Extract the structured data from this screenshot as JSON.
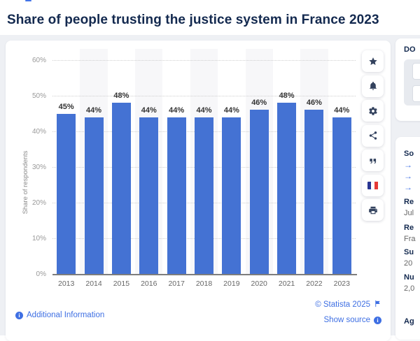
{
  "page": {
    "title": "Share of people trusting the justice system in France 2023"
  },
  "chart_data": {
    "type": "bar",
    "title": "Share of people trusting the justice system in France 2023",
    "categories": [
      "2013",
      "2014",
      "2015",
      "2016",
      "2017",
      "2018",
      "2019",
      "2020",
      "2021",
      "2022",
      "2023"
    ],
    "values": [
      45,
      44,
      48,
      44,
      44,
      44,
      44,
      46,
      48,
      46,
      44
    ],
    "data_labels": [
      "45%",
      "44%",
      "48%",
      "44%",
      "44%",
      "44%",
      "44%",
      "46%",
      "48%",
      "46%",
      "44%"
    ],
    "xlabel": "",
    "ylabel": "Share of respondents",
    "ylim": [
      0,
      60
    ],
    "yticks": [
      "0%",
      "10%",
      "20%",
      "30%",
      "40%",
      "50%",
      "60%"
    ],
    "grid": "horizontal-dotted",
    "legend": "none",
    "bar_color": "#4472d3",
    "plot_band_color": "#f7f7f9"
  },
  "toolbar": {
    "buttons": [
      {
        "icon": "favorite-star-icon"
      },
      {
        "icon": "notification-bell-icon"
      },
      {
        "icon": "settings-gear-icon"
      },
      {
        "icon": "share-icon"
      },
      {
        "icon": "citation-quote-icon"
      },
      {
        "icon": "language-french-flag-icon"
      },
      {
        "icon": "print-icon"
      }
    ]
  },
  "footer": {
    "additional_information": "Additional Information",
    "copyright": "© Statista 2025",
    "show_source": "Show source",
    "info_glyph": "i"
  },
  "right_panel": {
    "download_heading_fragment": "DO",
    "sources_heading_fragment": "So",
    "source_link_arrows": [
      "→",
      "→",
      "→"
    ],
    "info_items": [
      {
        "label_fragment": "Re",
        "value_fragment": "Jul"
      },
      {
        "label_fragment": "Re",
        "value_fragment": "Fra"
      },
      {
        "label_fragment": "Su",
        "value_fragment": "20"
      },
      {
        "label_fragment": "Nu",
        "value_fragment": "2,0"
      },
      {
        "label_fragment": "Ag",
        "value_fragment": ""
      }
    ]
  },
  "colors": {
    "bar_blue": "#4472d3",
    "title_navy": "#13294f",
    "link_blue": "#3e6fe3",
    "icon_navy": "#33425e",
    "page_background": "#eef0f4",
    "flag_blue": "#283593",
    "flag_red": "#e53935"
  }
}
